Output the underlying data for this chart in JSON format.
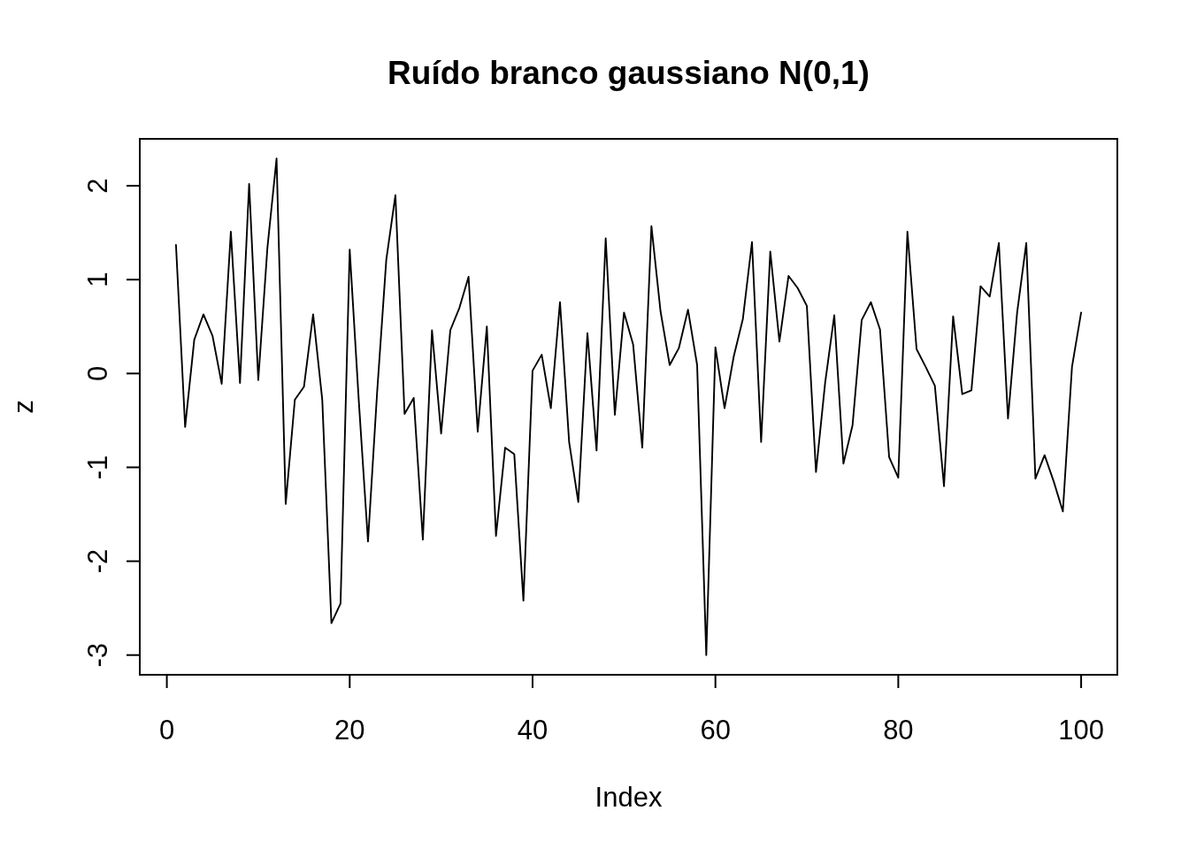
{
  "chart_data": {
    "type": "line",
    "title": "Ruído branco gaussiano N(0,1)",
    "xlabel": "Index",
    "ylabel": "z",
    "x": [
      1,
      2,
      3,
      4,
      5,
      6,
      7,
      8,
      9,
      10,
      11,
      12,
      13,
      14,
      15,
      16,
      17,
      18,
      19,
      20,
      21,
      22,
      23,
      24,
      25,
      26,
      27,
      28,
      29,
      30,
      31,
      32,
      33,
      34,
      35,
      36,
      37,
      38,
      39,
      40,
      41,
      42,
      43,
      44,
      45,
      46,
      47,
      48,
      49,
      50,
      51,
      52,
      53,
      54,
      55,
      56,
      57,
      58,
      59,
      60,
      61,
      62,
      63,
      64,
      65,
      66,
      67,
      68,
      69,
      70,
      71,
      72,
      73,
      74,
      75,
      76,
      77,
      78,
      79,
      80,
      81,
      82,
      83,
      84,
      85,
      86,
      87,
      88,
      89,
      90,
      91,
      92,
      93,
      94,
      95,
      96,
      97,
      98,
      99,
      100
    ],
    "series": [
      {
        "color": "#000000",
        "values": [
          1.37,
          -0.57,
          0.36,
          0.63,
          0.4,
          -0.11,
          1.51,
          -0.1,
          2.02,
          -0.07,
          1.34,
          2.29,
          -1.39,
          -0.28,
          -0.14,
          0.63,
          -0.28,
          -2.66,
          -2.45,
          1.32,
          -0.3,
          -1.79,
          -0.2,
          1.21,
          1.9,
          -0.43,
          -0.26,
          -1.77,
          0.46,
          -0.64,
          0.46,
          0.7,
          1.03,
          -0.62,
          0.5,
          -1.73,
          -0.79,
          -0.86,
          -2.42,
          0.03,
          0.2,
          -0.37,
          0.76,
          -0.73,
          -1.37,
          0.43,
          -0.82,
          1.44,
          -0.44,
          0.65,
          0.31,
          -0.79,
          1.57,
          0.66,
          0.09,
          0.27,
          0.68,
          0.09,
          -3.0,
          0.28,
          -0.37,
          0.18,
          0.58,
          1.4,
          -0.73,
          1.3,
          0.34,
          1.04,
          0.91,
          0.72,
          -1.05,
          -0.1,
          0.62,
          -0.96,
          -0.55,
          0.57,
          0.76,
          0.47,
          -0.89,
          -1.11,
          1.51,
          0.26,
          0.07,
          -0.13,
          -1.2,
          0.61,
          -0.22,
          -0.18,
          0.93,
          0.82,
          1.39,
          -0.48,
          0.65,
          1.39,
          -1.12,
          -0.87,
          -1.15,
          -1.47,
          0.07,
          0.65
        ]
      }
    ],
    "xlim": [
      -2.96,
      103.96
    ],
    "ylim": [
      -3.21,
      2.5
    ],
    "xticks": [
      0,
      20,
      40,
      60,
      80,
      100
    ],
    "yticks": [
      -3,
      -2,
      -1,
      0,
      1,
      2
    ]
  }
}
